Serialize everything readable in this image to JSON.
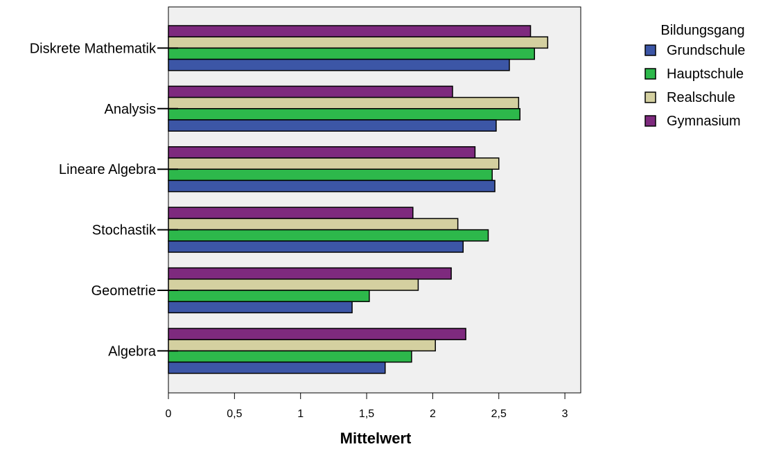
{
  "chart_data": {
    "type": "bar",
    "orientation": "horizontal",
    "categories": [
      "Diskrete Mathematik",
      "Analysis",
      "Lineare Algebra",
      "Stochastik",
      "Geometrie",
      "Algebra"
    ],
    "series": [
      {
        "name": "Grundschule",
        "color": "#3C56A6",
        "values": [
          2.58,
          2.48,
          2.47,
          2.23,
          1.39,
          1.64
        ]
      },
      {
        "name": "Hauptschule",
        "color": "#2DB84B",
        "values": [
          2.77,
          2.66,
          2.45,
          2.42,
          1.52,
          1.84
        ]
      },
      {
        "name": "Realschule",
        "color": "#D4D0A0",
        "values": [
          2.87,
          2.65,
          2.5,
          2.19,
          1.89,
          2.02
        ]
      },
      {
        "name": "Gymnasium",
        "color": "#7E2A7E",
        "values": [
          2.74,
          2.15,
          2.32,
          1.85,
          2.14,
          2.25
        ]
      }
    ],
    "xlabel": "Mittelwert",
    "ylabel": "",
    "xlim": [
      0,
      3.12
    ],
    "ticks": [
      "0",
      "0,5",
      "1",
      "1,5",
      "2",
      "2,5",
      "3"
    ],
    "tick_values": [
      0,
      0.5,
      1,
      1.5,
      2,
      2.5,
      3
    ],
    "legend": {
      "title": "Bildungsgang",
      "placement": "right"
    },
    "grid": false
  },
  "colors": {
    "plot_background": "#F0F0F0",
    "bar_stroke": "#000000"
  }
}
